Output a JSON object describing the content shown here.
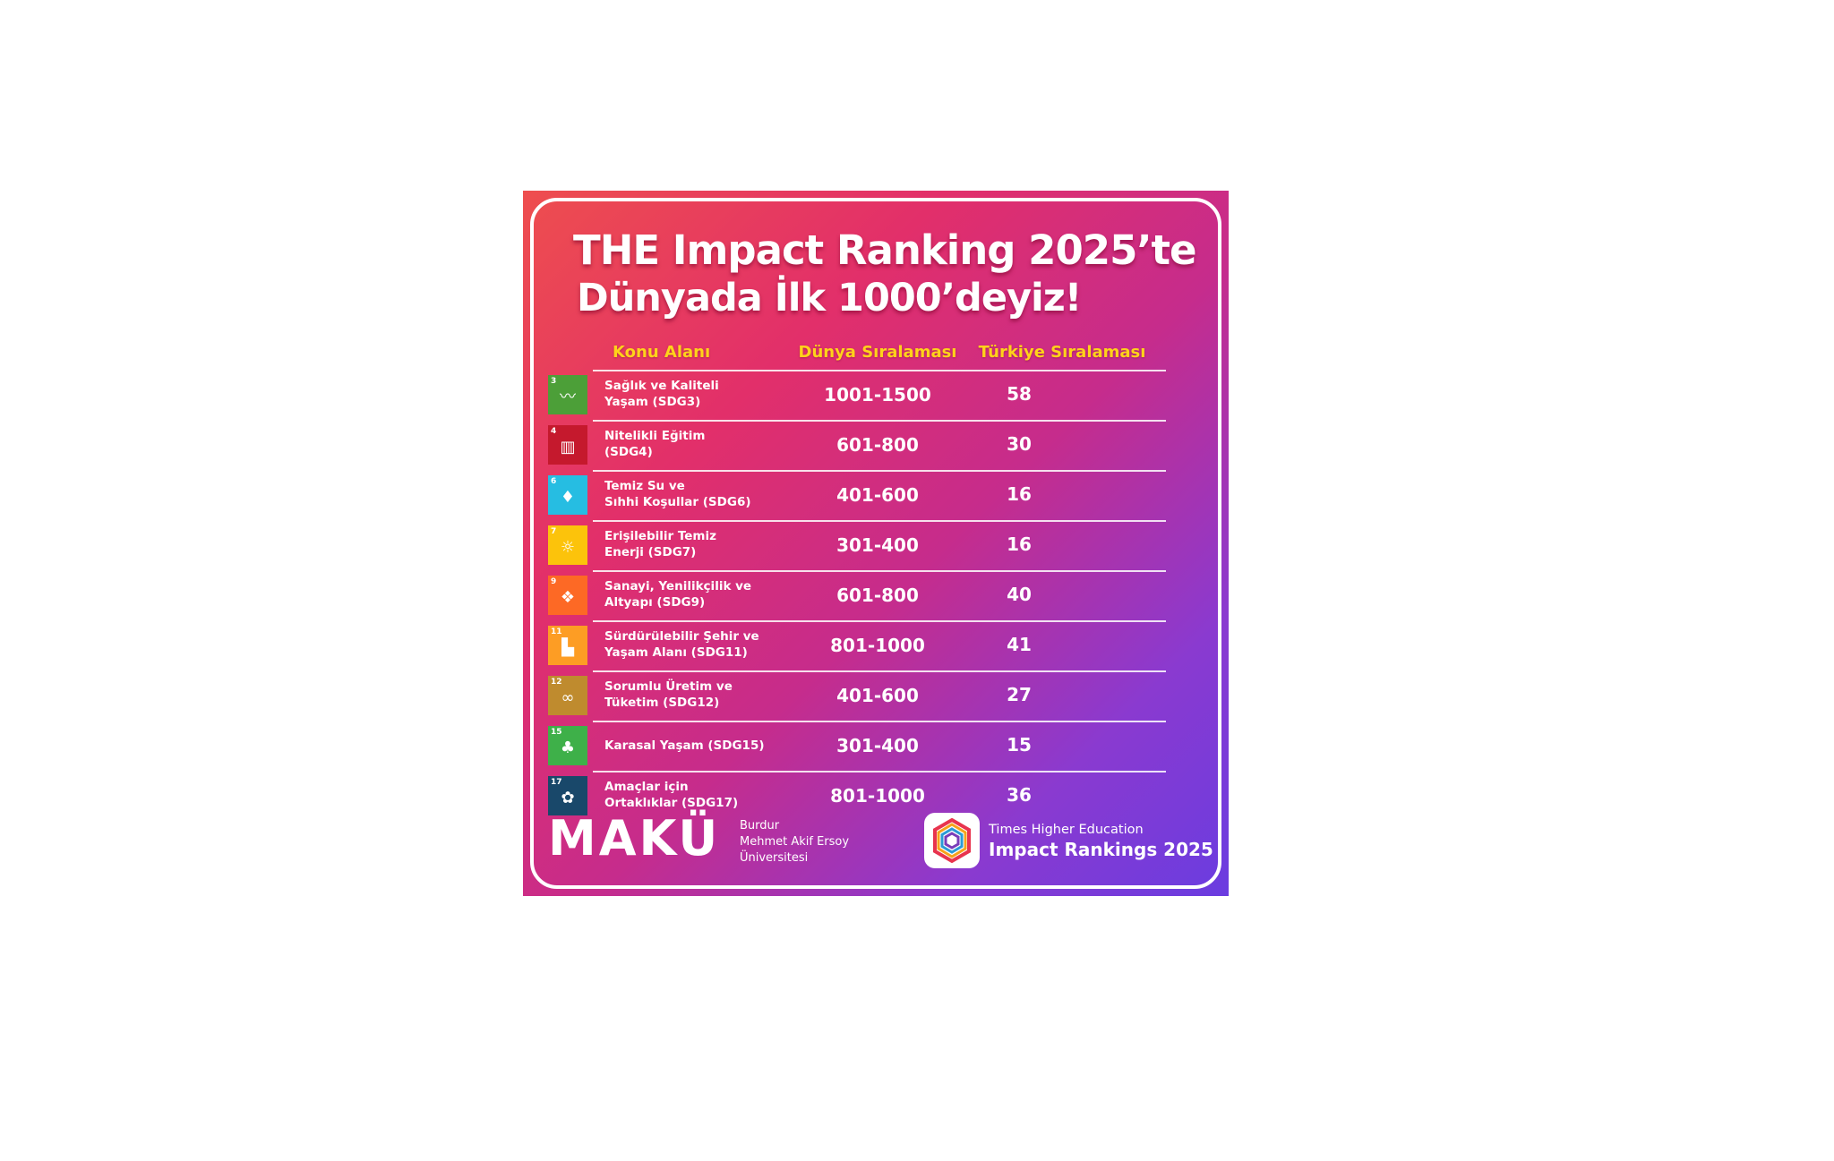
{
  "title": {
    "line1": "THE Impact Ranking 2025’te",
    "line2": "Dünyada İlk 1000’deyiz!"
  },
  "table": {
    "headers": [
      "Konu Alanı",
      "Dünya Sıralaması",
      "Türkiye Sıralaması"
    ],
    "rows": [
      {
        "sdg_num": "3",
        "color": "#4c9f38",
        "icon": "heartbeat-icon",
        "glyph": "〰",
        "topic_l1": "Sağlık ve Kaliteli",
        "topic_l2": "Yaşam (SDG3)",
        "world": "1001-1500",
        "turkey": "58"
      },
      {
        "sdg_num": "4",
        "color": "#c5192d",
        "icon": "book-icon",
        "glyph": "▥",
        "topic_l1": "Nitelikli Eğitim",
        "topic_l2": "(SDG4)",
        "world": "601-800",
        "turkey": "30"
      },
      {
        "sdg_num": "6",
        "color": "#26bde2",
        "icon": "water-drop-icon",
        "glyph": "♦",
        "topic_l1": "Temiz Su ve",
        "topic_l2": "Sıhhi Koşullar (SDG6)",
        "world": "401-600",
        "turkey": "16"
      },
      {
        "sdg_num": "7",
        "color": "#fcc30b",
        "icon": "sun-icon",
        "glyph": "☼",
        "topic_l1": "Erişilebilir Temiz",
        "topic_l2": "Enerji (SDG7)",
        "world": "301-400",
        "turkey": "16"
      },
      {
        "sdg_num": "9",
        "color": "#fd6925",
        "icon": "cubes-icon",
        "glyph": "❖",
        "topic_l1": "Sanayi, Yenilikçilik ve",
        "topic_l2": "Altyapı (SDG9)",
        "world": "601-800",
        "turkey": "40"
      },
      {
        "sdg_num": "11",
        "color": "#fd9d24",
        "icon": "city-icon",
        "glyph": "▙",
        "topic_l1": "Sürdürülebilir Şehir ve",
        "topic_l2": "Yaşam Alanı (SDG11)",
        "world": "801-1000",
        "turkey": "41"
      },
      {
        "sdg_num": "12",
        "color": "#bf8b2e",
        "icon": "infinity-icon",
        "glyph": "∞",
        "topic_l1": "Sorumlu Üretim ve",
        "topic_l2": "Tüketim (SDG12)",
        "world": "401-600",
        "turkey": "27"
      },
      {
        "sdg_num": "15",
        "color": "#3eb049",
        "icon": "tree-icon",
        "glyph": "♣",
        "topic_l1": "Karasal Yaşam (SDG15)",
        "topic_l2": "",
        "world": "301-400",
        "turkey": "15"
      },
      {
        "sdg_num": "17",
        "color": "#19486a",
        "icon": "flower-icon",
        "glyph": "✿",
        "topic_l1": "Amaçlar için",
        "topic_l2": "Ortaklıklar (SDG17)",
        "world": "801-1000",
        "turkey": "36"
      }
    ]
  },
  "footer": {
    "logo_text": "MAKÜ",
    "uni_line1": "Burdur",
    "uni_line2": "Mehmet Akif Ersoy",
    "uni_line3": "Üniversitesi",
    "the_line1": "Times Higher Education",
    "the_line2": "Impact Rankings 2025"
  }
}
